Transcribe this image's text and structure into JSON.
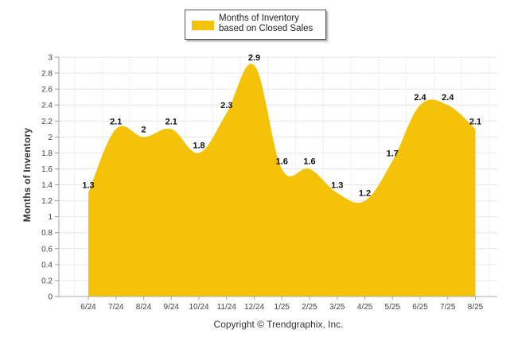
{
  "legend": {
    "label": "Months of Inventory based on Closed Sales",
    "color": "#f5c20a"
  },
  "copyright": "Copyright © Trendgraphix, Inc.",
  "chart_data": {
    "type": "area",
    "categories": [
      "6/24",
      "7/24",
      "8/24",
      "9/24",
      "10/24",
      "11/24",
      "12/24",
      "1/25",
      "2/25",
      "3/25",
      "4/25",
      "5/25",
      "6/25",
      "7/25",
      "8/25"
    ],
    "series": [
      {
        "name": "Months of Inventory based on Closed Sales",
        "values": [
          1.3,
          2.1,
          2,
          2.1,
          1.8,
          2.3,
          2.9,
          1.6,
          1.6,
          1.3,
          1.2,
          1.7,
          2.4,
          2.4,
          2.1
        ],
        "color": "#f5c20a"
      }
    ],
    "data_labels": [
      "1.3",
      "2.1",
      "2",
      "2.1",
      "1.8",
      "2.3",
      "2.9",
      "1.6",
      "1.6",
      "1.3",
      "1.2",
      "1.7",
      "2.4",
      "2.4",
      "2.1"
    ],
    "ylabel": "Months of Inventory",
    "xlabel": "",
    "title": "",
    "ylim": [
      0,
      3
    ],
    "yticks": [
      "0",
      "0.2",
      "0.4",
      "0.6",
      "0.8",
      "1",
      "1.2",
      "1.4",
      "1.6",
      "1.8",
      "2",
      "2.2",
      "2.4",
      "2.6",
      "2.8",
      "3"
    ],
    "grid": true,
    "legend_position": "top-center"
  }
}
